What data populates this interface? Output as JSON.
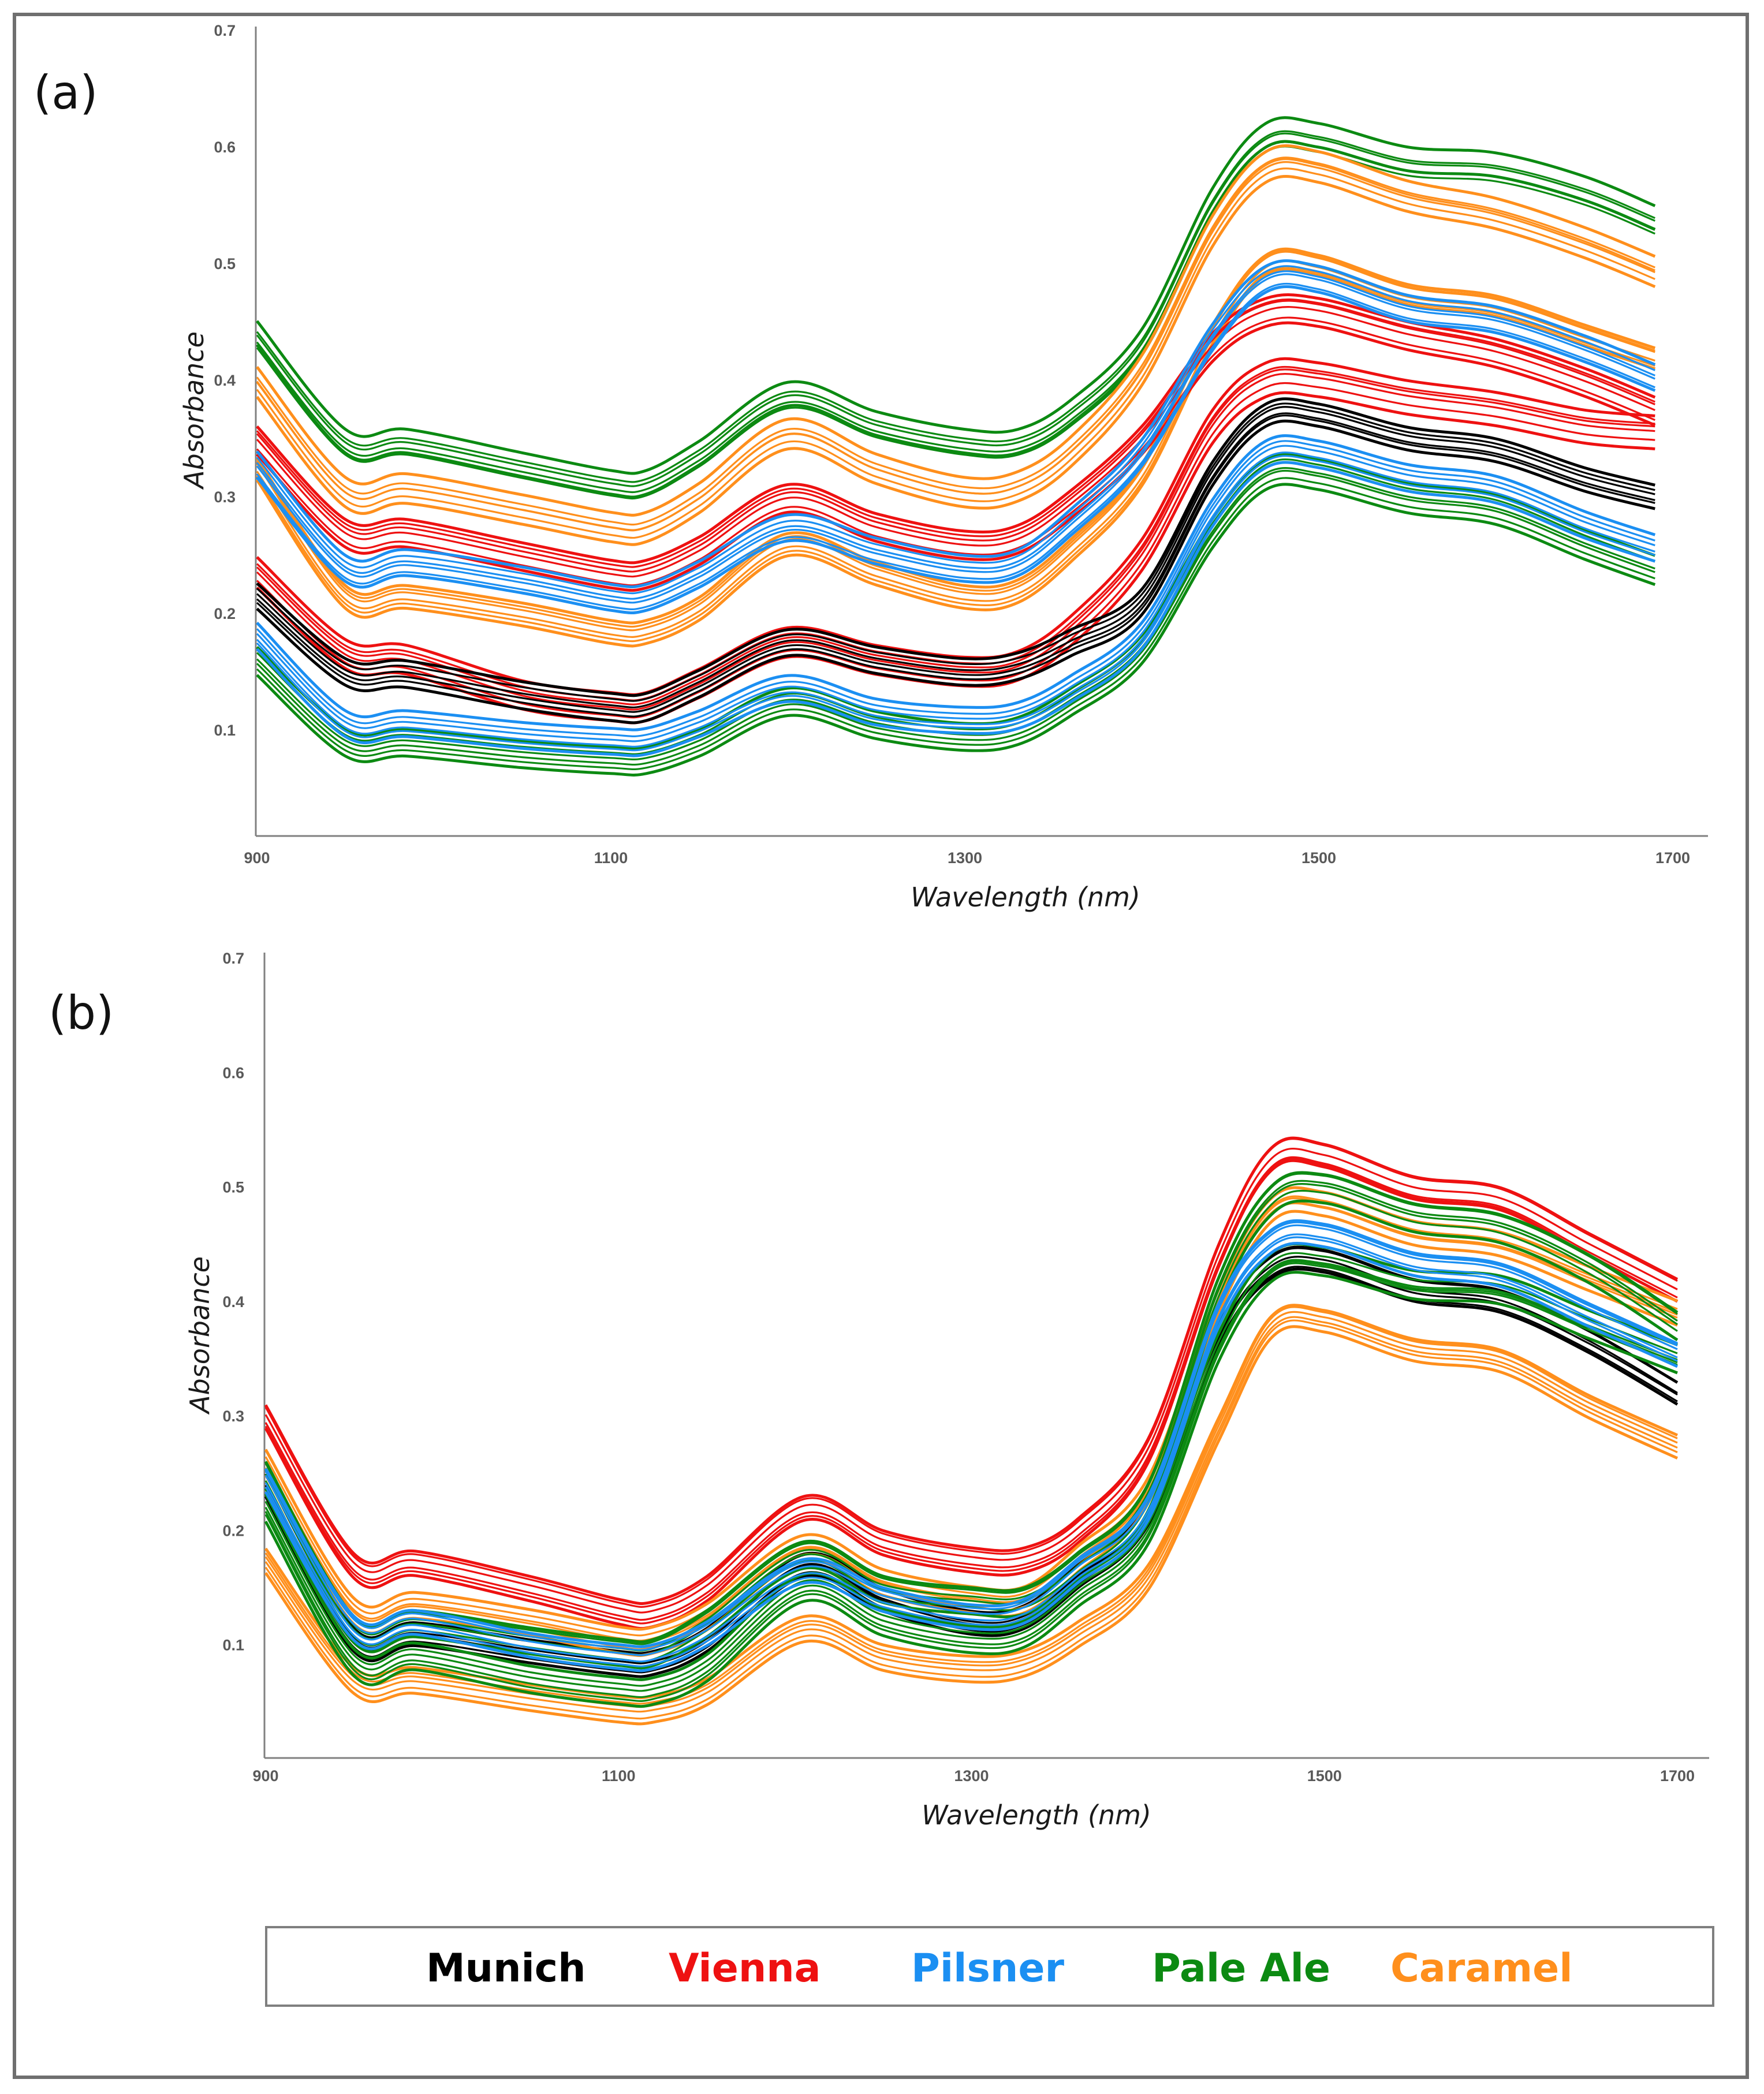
{
  "colors": {
    "Munich": "#000000",
    "Vienna": "#ee1111",
    "Pilsner": "#1b8ff2",
    "Pale Ale": "#0c8a12",
    "Caramel": "#ff8f1c"
  },
  "legend": {
    "items": [
      {
        "label": "Munich",
        "color": "#000000"
      },
      {
        "label": "Vienna",
        "color": "#ee1111"
      },
      {
        "label": "Pilsner",
        "color": "#1b8ff2"
      },
      {
        "label": "Pale Ale",
        "color": "#0c8a12"
      },
      {
        "label": "Caramel",
        "color": "#ff8f1c"
      }
    ]
  },
  "chart_data": [
    {
      "panel": "(a)",
      "type": "line",
      "xlabel": "Wavelength (nm)",
      "ylabel": "Absorbance",
      "xlim": [
        900,
        1700
      ],
      "ylim": [
        0,
        0.7
      ],
      "xticks": [
        "900",
        "1100",
        "1300",
        "1500",
        "1700"
      ],
      "yticks": [
        "0.1",
        "0.2",
        "0.3",
        "0.4",
        "0.5",
        "0.6",
        "0.7"
      ],
      "x": [
        900,
        950,
        985,
        1050,
        1100,
        1120,
        1150,
        1200,
        1250,
        1300,
        1330,
        1360,
        1400,
        1440,
        1470,
        1500,
        1550,
        1600,
        1650,
        1690
      ],
      "series": [
        {
          "name": "Pale Ale",
          "values": [
            0.437,
            0.345,
            0.345,
            0.325,
            0.31,
            0.31,
            0.335,
            0.385,
            0.36,
            0.345,
            0.345,
            0.37,
            0.43,
            0.55,
            0.605,
            0.605,
            0.585,
            0.58,
            0.56,
            0.535
          ]
        },
        {
          "name": "Pale Ale",
          "values": [
            0.16,
            0.09,
            0.09,
            0.08,
            0.075,
            0.075,
            0.09,
            0.125,
            0.105,
            0.095,
            0.1,
            0.125,
            0.17,
            0.27,
            0.32,
            0.32,
            0.3,
            0.29,
            0.26,
            0.238
          ]
        },
        {
          "name": "Caramel",
          "values": [
            0.4,
            0.305,
            0.308,
            0.29,
            0.275,
            0.275,
            0.3,
            0.355,
            0.325,
            0.305,
            0.31,
            0.34,
            0.41,
            0.53,
            0.585,
            0.585,
            0.56,
            0.545,
            0.52,
            0.495
          ]
        },
        {
          "name": "Caramel",
          "values": [
            0.325,
            0.215,
            0.215,
            0.2,
            0.185,
            0.185,
            0.205,
            0.26,
            0.235,
            0.215,
            0.22,
            0.255,
            0.32,
            0.44,
            0.5,
            0.5,
            0.475,
            0.465,
            0.44,
            0.42
          ]
        },
        {
          "name": "Vienna",
          "values": [
            0.235,
            0.165,
            0.16,
            0.13,
            0.12,
            0.12,
            0.14,
            0.175,
            0.16,
            0.15,
            0.155,
            0.185,
            0.25,
            0.36,
            0.4,
            0.4,
            0.385,
            0.375,
            0.36,
            0.355
          ]
        },
        {
          "name": "Vienna",
          "values": [
            0.35,
            0.27,
            0.27,
            0.25,
            0.235,
            0.235,
            0.255,
            0.3,
            0.275,
            0.26,
            0.265,
            0.295,
            0.35,
            0.43,
            0.46,
            0.46,
            0.44,
            0.425,
            0.4,
            0.375
          ]
        },
        {
          "name": "Munich",
          "values": [
            0.215,
            0.15,
            0.148,
            0.13,
            0.12,
            0.12,
            0.14,
            0.175,
            0.16,
            0.15,
            0.155,
            0.175,
            0.21,
            0.32,
            0.37,
            0.37,
            0.35,
            0.34,
            0.315,
            0.3
          ]
        },
        {
          "name": "Pilsner",
          "values": [
            0.18,
            0.105,
            0.105,
            0.095,
            0.09,
            0.09,
            0.105,
            0.135,
            0.115,
            0.108,
            0.112,
            0.135,
            0.18,
            0.285,
            0.335,
            0.335,
            0.315,
            0.305,
            0.275,
            0.255
          ]
        },
        {
          "name": "Pilsner",
          "values": [
            0.33,
            0.24,
            0.245,
            0.23,
            0.215,
            0.215,
            0.235,
            0.275,
            0.255,
            0.24,
            0.245,
            0.28,
            0.34,
            0.44,
            0.49,
            0.49,
            0.465,
            0.455,
            0.43,
            0.405
          ]
        }
      ]
    },
    {
      "panel": "(b)",
      "type": "line",
      "xlabel": "Wavelength (nm)",
      "ylabel": "Absorbance",
      "xlim": [
        900,
        1700
      ],
      "ylim": [
        0,
        0.7
      ],
      "xticks": [
        "900",
        "1100",
        "1300",
        "1500",
        "1700"
      ],
      "yticks": [
        "0.1",
        "0.2",
        "0.3",
        "0.4",
        "0.5",
        "0.6",
        "0.7"
      ],
      "x": [
        900,
        950,
        985,
        1050,
        1100,
        1120,
        1150,
        1205,
        1250,
        1300,
        1330,
        1360,
        1400,
        1440,
        1470,
        1500,
        1550,
        1600,
        1650,
        1700
      ],
      "series": [
        {
          "name": "Vienna",
          "values": [
            0.3,
            0.17,
            0.172,
            0.15,
            0.13,
            0.128,
            0.15,
            0.22,
            0.19,
            0.175,
            0.175,
            0.2,
            0.27,
            0.44,
            0.525,
            0.528,
            0.5,
            0.49,
            0.45,
            0.41
          ]
        },
        {
          "name": "Caramel",
          "values": [
            0.175,
            0.07,
            0.07,
            0.055,
            0.045,
            0.045,
            0.06,
            0.115,
            0.09,
            0.08,
            0.085,
            0.11,
            0.16,
            0.29,
            0.38,
            0.385,
            0.36,
            0.35,
            0.31,
            0.275
          ]
        },
        {
          "name": "Munich",
          "values": [
            0.24,
            0.105,
            0.11,
            0.095,
            0.085,
            0.085,
            0.105,
            0.17,
            0.14,
            0.12,
            0.125,
            0.16,
            0.215,
            0.37,
            0.43,
            0.435,
            0.41,
            0.4,
            0.365,
            0.32
          ]
        },
        {
          "name": "Caramel",
          "values": [
            0.26,
            0.13,
            0.135,
            0.12,
            0.105,
            0.105,
            0.125,
            0.185,
            0.155,
            0.14,
            0.14,
            0.175,
            0.235,
            0.4,
            0.48,
            0.485,
            0.46,
            0.45,
            0.42,
            0.39
          ]
        },
        {
          "name": "Pale Ale",
          "values": [
            0.22,
            0.085,
            0.09,
            0.07,
            0.06,
            0.06,
            0.08,
            0.15,
            0.12,
            0.105,
            0.11,
            0.145,
            0.2,
            0.36,
            0.43,
            0.435,
            0.415,
            0.41,
            0.38,
            0.35
          ]
        },
        {
          "name": "Pale Ale",
          "values": [
            0.25,
            0.115,
            0.12,
            0.105,
            0.095,
            0.095,
            0.12,
            0.18,
            0.15,
            0.14,
            0.14,
            0.17,
            0.23,
            0.41,
            0.49,
            0.5,
            0.475,
            0.465,
            0.43,
            0.38
          ]
        },
        {
          "name": "Pilsner",
          "values": [
            0.245,
            0.115,
            0.12,
            0.1,
            0.09,
            0.09,
            0.11,
            0.165,
            0.14,
            0.125,
            0.13,
            0.165,
            0.22,
            0.39,
            0.455,
            0.46,
            0.435,
            0.425,
            0.39,
            0.355
          ]
        }
      ]
    }
  ]
}
